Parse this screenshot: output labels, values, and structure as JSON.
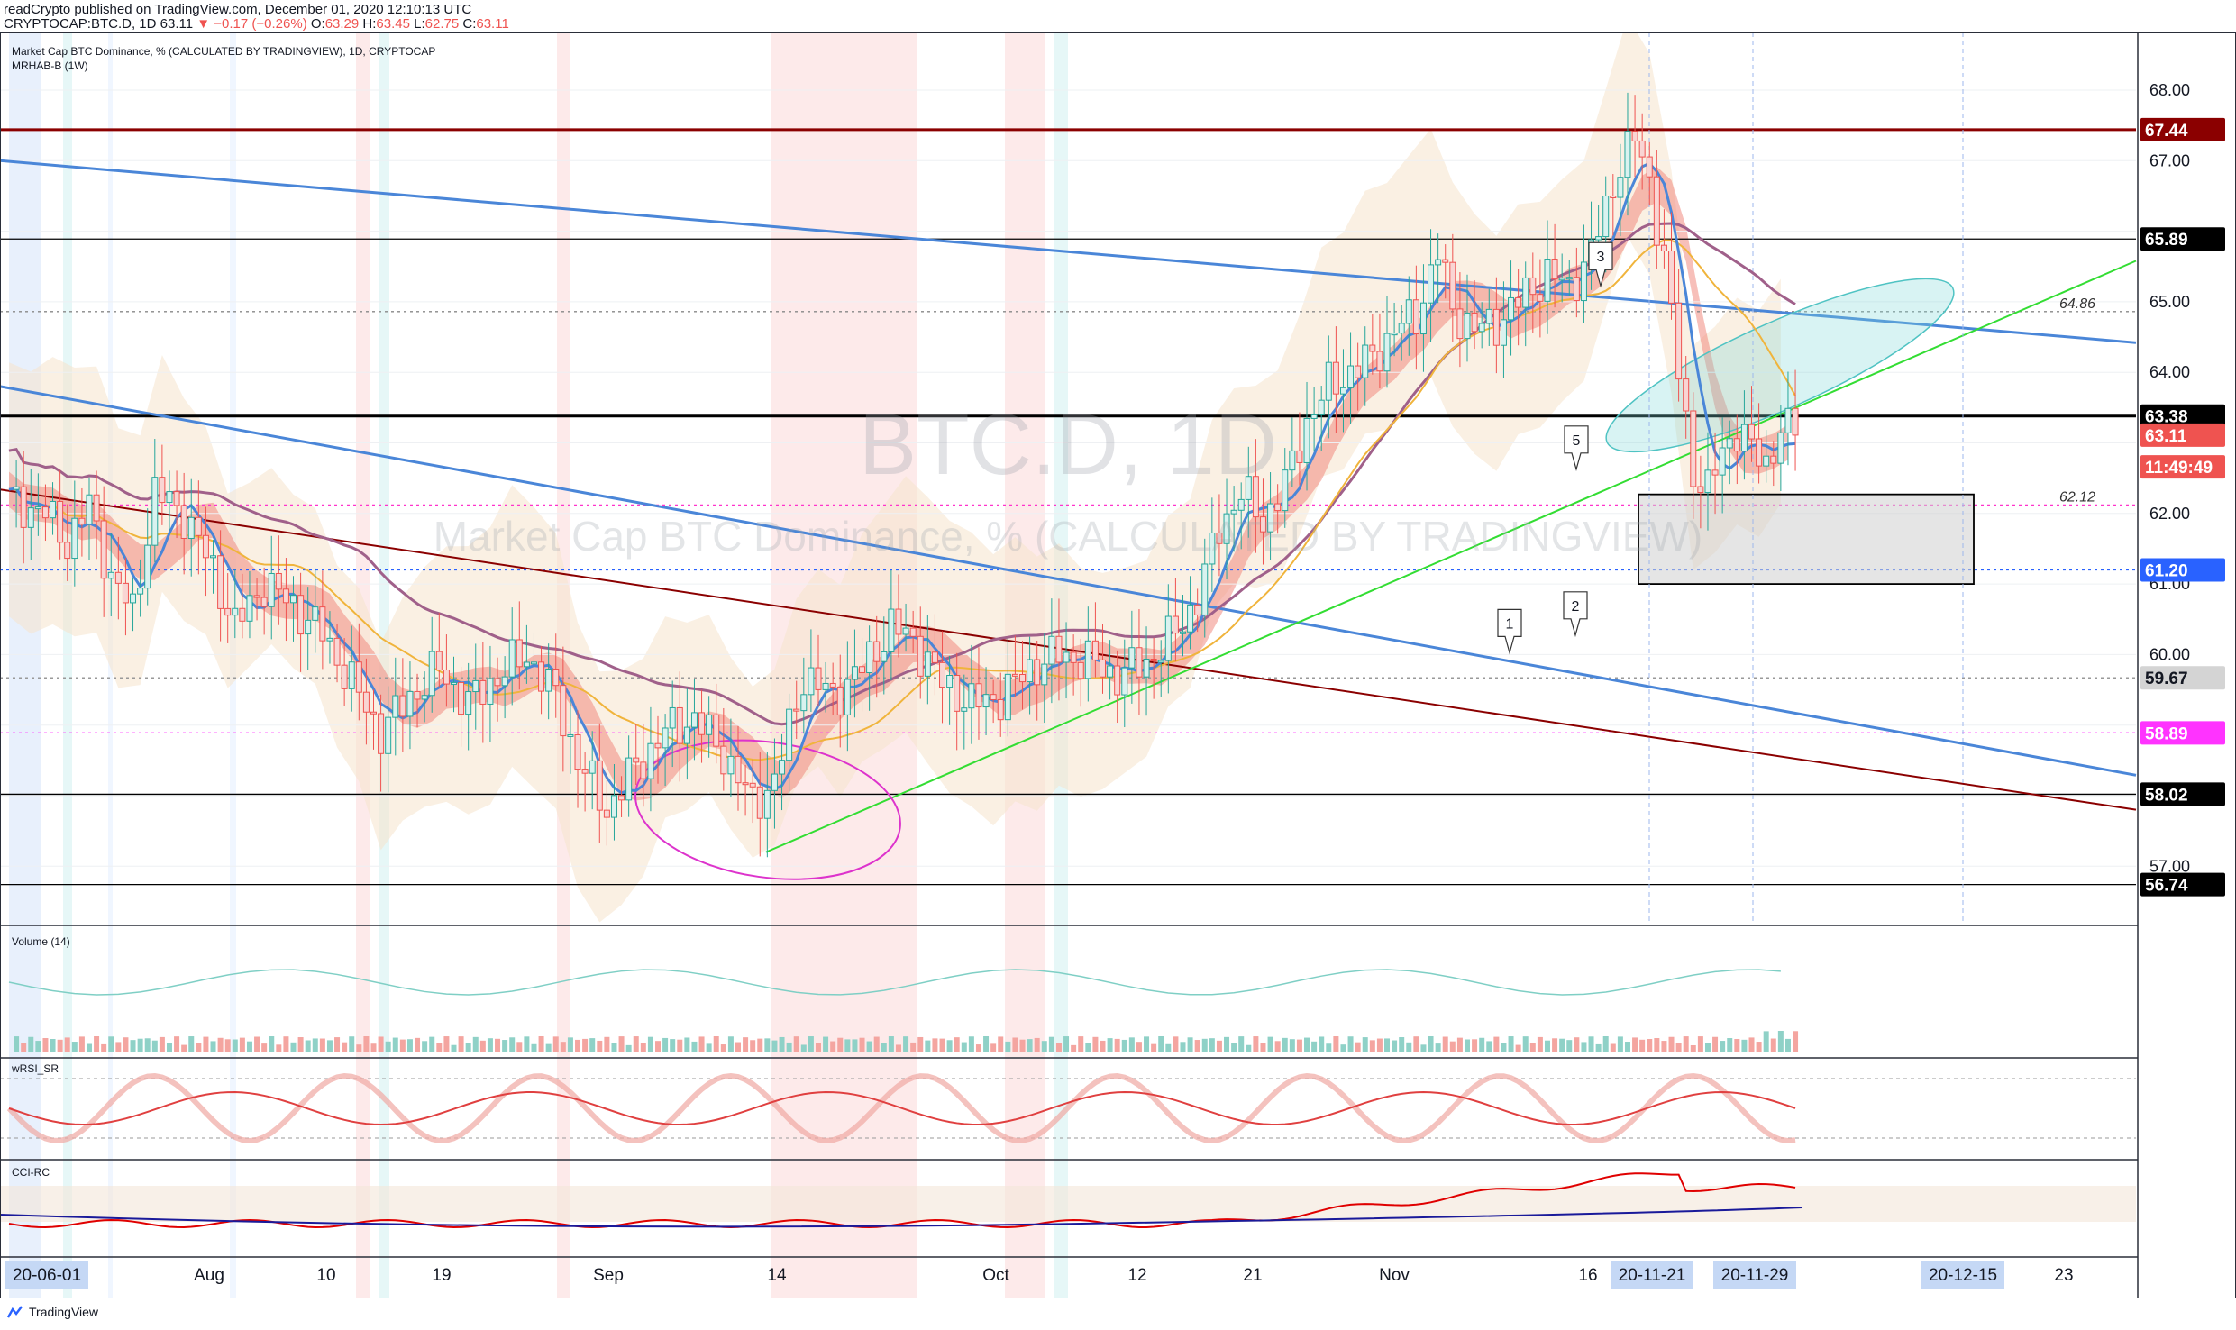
{
  "header": {
    "publisher_line": "readCrypto published on TradingView.com, December 01, 2020 12:10:13 UTC",
    "symbol": "CRYPTOCAP:BTC.D, 1D",
    "last": "63.11",
    "change": "▼ −0.17 (−0.26%)",
    "o_label": "O:",
    "o": "63.29",
    "h_label": "H:",
    "h": "63.45",
    "l_label": "L:",
    "l": "62.75",
    "c_label": "C:",
    "c": "63.11"
  },
  "legend": {
    "title": "Market Cap BTC Dominance, % (CALCULATED BY TRADINGVIEW), 1D, CRYPTOCAP",
    "indicator": "MRHAB-B (1W)"
  },
  "watermark": {
    "big": "BTC.D, 1D",
    "sub": "Market Cap BTC Dominance, % (CALCULATED BY TRADINGVIEW)"
  },
  "pane_labels": {
    "volume": "Volume (14)",
    "wrsi": "wRSI_SR",
    "cci": "CCI-RC"
  },
  "branding": "TradingView",
  "colors": {
    "up": "#26a69a",
    "down": "#ef5350",
    "trend_blue": "#4a86d8",
    "dark_red": "#8b0000",
    "green_line": "#33dd33",
    "ellipse": "#7fd8d8",
    "circle": "#dd33cc"
  },
  "chart_data": {
    "type": "candlestick",
    "price_axis": {
      "ylim": [
        56.4,
        68.8
      ],
      "ticks": [
        "68.00",
        "67.00",
        "65.00",
        "64.00",
        "62.00",
        "61.00",
        "60.00",
        "57.00"
      ],
      "labels": [
        {
          "text": "67.44",
          "value": 67.44,
          "bg": "#8b0000",
          "fg": "#ffffff"
        },
        {
          "text": "65.89",
          "value": 65.89,
          "bg": "#000000",
          "fg": "#ffffff"
        },
        {
          "text": "63.38",
          "value": 63.38,
          "bg": "#000000",
          "fg": "#ffffff"
        },
        {
          "text": "63.11",
          "value": 63.11,
          "bg": "#ef5350",
          "fg": "#ffffff"
        },
        {
          "text": "11:49:49",
          "value": 62.66,
          "bg": "#ef5350",
          "fg": "#ffffff"
        },
        {
          "text": "61.20",
          "value": 61.2,
          "bg": "#2962ff",
          "fg": "#ffffff"
        },
        {
          "text": "59.67",
          "value": 59.67,
          "bg": "#d4d4d4",
          "fg": "#131722"
        },
        {
          "text": "58.89",
          "value": 58.89,
          "bg": "#ff33ff",
          "fg": "#ffffff"
        },
        {
          "text": "58.02",
          "value": 58.02,
          "bg": "#000000",
          "fg": "#ffffff"
        },
        {
          "text": "56.74",
          "value": 56.74,
          "bg": "#000000",
          "fg": "#ffffff"
        }
      ],
      "inline_labels": [
        {
          "text": "64.86",
          "value": 64.86
        },
        {
          "text": "62.12",
          "value": 62.12
        }
      ]
    },
    "time_axis": {
      "ticks": [
        "20-06-01",
        "Aug",
        "10",
        "19",
        "Sep",
        "14",
        "Oct",
        "12",
        "21",
        "Nov",
        "16",
        "20-11-21",
        "20-11-29",
        "20-12-15",
        "23"
      ],
      "highlighted": [
        "20-06-01",
        "20-11-21",
        "20-11-29",
        "20-12-15"
      ]
    },
    "horizontal_levels": [
      67.44,
      65.89,
      63.38,
      58.02,
      56.74
    ],
    "dotted_levels": [
      64.86,
      62.12,
      61.2,
      59.67,
      58.89
    ],
    "wave_labels": [
      "1",
      "2",
      "3",
      "5"
    ],
    "series": [
      {
        "name": "BTC.D",
        "anchors": [
          [
            0,
            62.2
          ],
          [
            5,
            62.0
          ],
          [
            8,
            61.6
          ],
          [
            11,
            62.1
          ],
          [
            14,
            61.1
          ],
          [
            17,
            60.6
          ],
          [
            20,
            62.3
          ],
          [
            24,
            62.0
          ],
          [
            28,
            61.2
          ],
          [
            31,
            60.4
          ],
          [
            35,
            61.0
          ],
          [
            39,
            60.7
          ],
          [
            43,
            60.3
          ],
          [
            47,
            59.6
          ],
          [
            51,
            58.9
          ],
          [
            55,
            59.4
          ],
          [
            59,
            59.8
          ],
          [
            63,
            59.3
          ],
          [
            67,
            59.7
          ],
          [
            71,
            60.0
          ],
          [
            75,
            59.4
          ],
          [
            78,
            58.5
          ],
          [
            82,
            57.8
          ],
          [
            86,
            58.4
          ],
          [
            90,
            58.9
          ],
          [
            94,
            59.1
          ],
          [
            98,
            58.6
          ],
          [
            102,
            57.9
          ],
          [
            105,
            58.2
          ],
          [
            109,
            59.7
          ],
          [
            113,
            59.4
          ],
          [
            117,
            59.8
          ],
          [
            121,
            60.4
          ],
          [
            124,
            60.2
          ],
          [
            128,
            59.6
          ],
          [
            132,
            59.3
          ],
          [
            136,
            59.4
          ],
          [
            140,
            59.8
          ],
          [
            144,
            60.0
          ],
          [
            148,
            59.9
          ],
          [
            152,
            59.7
          ],
          [
            156,
            59.9
          ],
          [
            160,
            60.3
          ],
          [
            163,
            60.8
          ],
          [
            166,
            61.8
          ],
          [
            169,
            62.3
          ],
          [
            172,
            61.9
          ],
          [
            175,
            62.4
          ],
          [
            178,
            63.3
          ],
          [
            181,
            63.8
          ],
          [
            184,
            64.0
          ],
          [
            187,
            64.2
          ],
          [
            190,
            64.6
          ],
          [
            193,
            64.8
          ],
          [
            196,
            65.7
          ],
          [
            198,
            64.9
          ],
          [
            201,
            64.6
          ],
          [
            204,
            64.7
          ],
          [
            208,
            65.1
          ],
          [
            211,
            65.4
          ],
          [
            214,
            65.2
          ],
          [
            217,
            65.7
          ],
          [
            219,
            66.3
          ],
          [
            221,
            67.0
          ],
          [
            223,
            67.3
          ],
          [
            225,
            66.7
          ],
          [
            227,
            65.6
          ],
          [
            229,
            64.0
          ],
          [
            231,
            62.6
          ],
          [
            233,
            62.3
          ],
          [
            235,
            62.9
          ],
          [
            237,
            63.2
          ],
          [
            239,
            62.9
          ],
          [
            241,
            62.7
          ],
          [
            243,
            63.2
          ],
          [
            245,
            63.11
          ]
        ]
      }
    ]
  }
}
